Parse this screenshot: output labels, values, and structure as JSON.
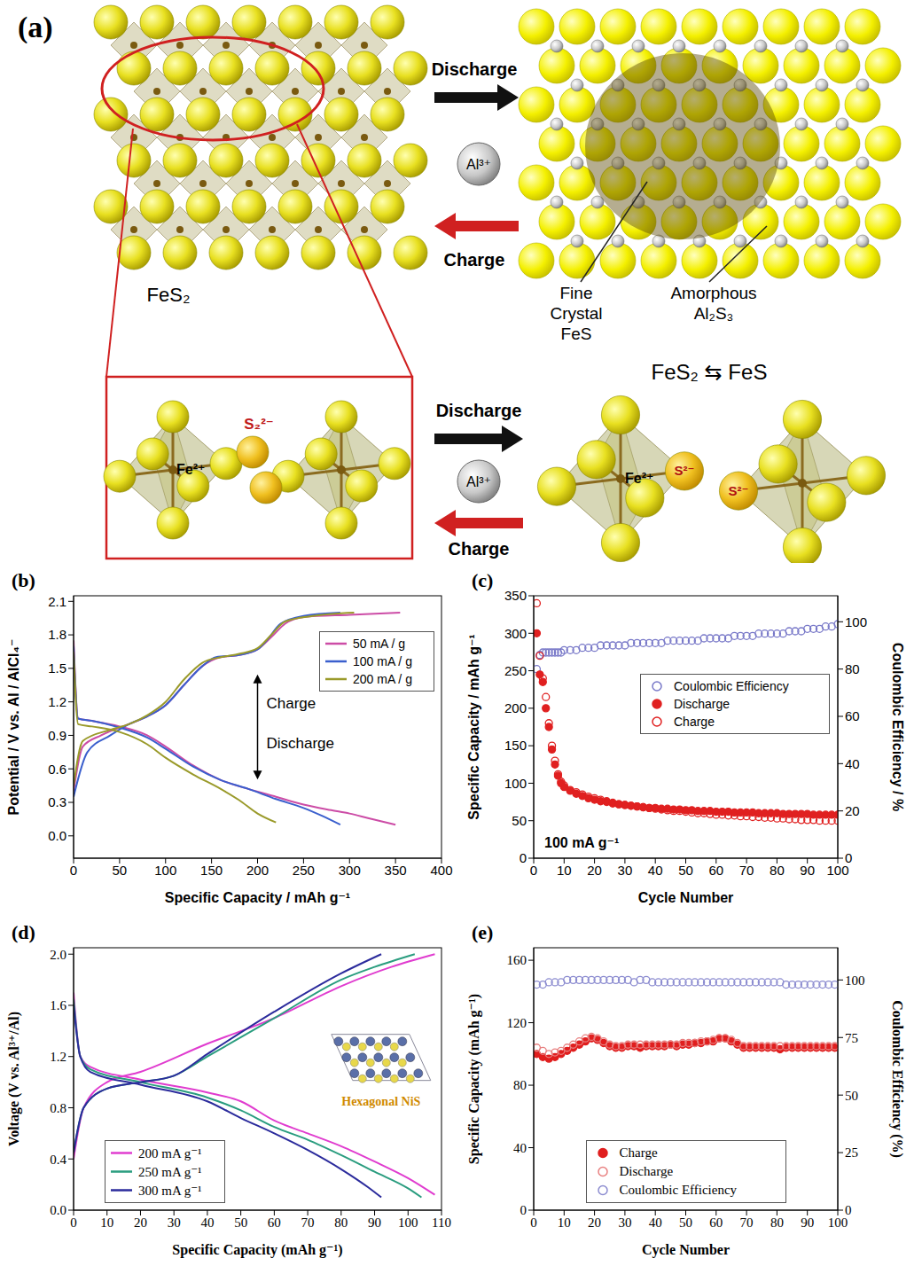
{
  "diagram": {
    "label": "(a)",
    "top": {
      "left_label": "FeS₂",
      "discharge": "Discharge",
      "charge": "Charge",
      "ion": "Al³⁺",
      "products": [
        "Fine Crystal FeS",
        "Amorphous Al₂S₃"
      ]
    },
    "bottom": {
      "discharge": "Discharge",
      "charge": "Charge",
      "ion": "Al³⁺",
      "reaction": "FeS₂ ⇆ FeS",
      "left_labels": [
        "Fe²⁺",
        "S₂²⁻"
      ],
      "right_labels": [
        "Fe²⁺",
        "S²⁻",
        "S²⁻"
      ]
    }
  },
  "chart_data": [
    {
      "panel": "(b)",
      "type": "line",
      "x_label": "Specific Capacity / mAh g⁻¹",
      "y_label": "Potential / V vs. Al / AlCl₄⁻",
      "xlim": [
        0,
        400
      ],
      "xticks": [
        0,
        50,
        100,
        150,
        200,
        250,
        300,
        350,
        400
      ],
      "ylim": [
        -0.2,
        2.15
      ],
      "yticks": [
        {
          "value": 0,
          "label": "0.0"
        },
        0.3,
        0.6,
        0.9,
        1.2,
        1.5,
        1.8,
        2.1
      ],
      "legend": "right",
      "annotations": [
        "Charge",
        "Discharge"
      ],
      "series": [
        {
          "name": "50 mA / g",
          "color": "#cc4ca6",
          "discharge": {
            "x": [
              0,
              5,
              20,
              50,
              80,
              100,
              130,
              160,
              190,
              220,
              250,
              280,
              300,
              320,
              350
            ],
            "values": [
              1.75,
              1.05,
              1.03,
              0.98,
              0.9,
              0.8,
              0.63,
              0.5,
              0.42,
              0.35,
              0.28,
              0.23,
              0.2,
              0.16,
              0.1
            ]
          },
          "charge": {
            "x": [
              0,
              10,
              30,
              60,
              80,
              100,
              120,
              140,
              160,
              180,
              200,
              215,
              230,
              250,
              300,
              355
            ],
            "values": [
              0.4,
              0.8,
              0.9,
              1.0,
              1.07,
              1.17,
              1.35,
              1.52,
              1.6,
              1.62,
              1.67,
              1.78,
              1.9,
              1.96,
              1.98,
              2.0
            ]
          }
        },
        {
          "name": "100 mA / g",
          "color": "#3a5fcd",
          "discharge": {
            "x": [
              0,
              5,
              20,
              50,
              80,
              100,
              130,
              160,
              190,
              220,
              250,
              270,
              290
            ],
            "values": [
              1.7,
              1.05,
              1.03,
              0.97,
              0.88,
              0.78,
              0.62,
              0.5,
              0.42,
              0.33,
              0.25,
              0.18,
              0.1
            ]
          },
          "charge": {
            "x": [
              0,
              15,
              40,
              60,
              80,
              100,
              120,
              140,
              155,
              180,
              200,
              210,
              225,
              250,
              290
            ],
            "values": [
              0.35,
              0.75,
              0.9,
              1.0,
              1.07,
              1.17,
              1.35,
              1.52,
              1.6,
              1.62,
              1.67,
              1.75,
              1.9,
              1.97,
              2.0
            ]
          }
        },
        {
          "name": "200 mA / g",
          "color": "#9a9a2a",
          "discharge": {
            "x": [
              0,
              5,
              20,
              50,
              80,
              100,
              130,
              160,
              180,
              200,
              220
            ],
            "values": [
              1.65,
              1.0,
              0.98,
              0.93,
              0.82,
              0.7,
              0.55,
              0.42,
              0.32,
              0.2,
              0.12
            ]
          },
          "charge": {
            "x": [
              0,
              10,
              40,
              60,
              80,
              100,
              120,
              140,
              160,
              180,
              200,
              215,
              230,
              260,
              305
            ],
            "values": [
              0.45,
              0.85,
              0.95,
              1.0,
              1.08,
              1.2,
              1.4,
              1.55,
              1.6,
              1.63,
              1.68,
              1.8,
              1.92,
              1.97,
              2.0
            ]
          }
        }
      ]
    },
    {
      "panel": "(c)",
      "type": "scatter",
      "x_label": "Cycle Number",
      "y_label": "Specific Capacity / mAh g⁻¹",
      "y2_label": "Coulombic Efficiency / %",
      "xlim": [
        0,
        100
      ],
      "xticks": [
        0,
        10,
        20,
        30,
        40,
        50,
        60,
        70,
        80,
        90,
        100
      ],
      "ylim": [
        0,
        350
      ],
      "yticks": [
        0,
        50,
        100,
        150,
        200,
        250,
        300,
        350
      ],
      "y2lim": [
        0,
        111
      ],
      "y2ticks": [
        0,
        20,
        40,
        60,
        80,
        100
      ],
      "legend": "center",
      "annotations": [
        "100 mA g⁻¹"
      ],
      "x": [
        1,
        2,
        3,
        4,
        5,
        6,
        7,
        8,
        9,
        10,
        12,
        14,
        16,
        18,
        20,
        22,
        24,
        26,
        28,
        30,
        32,
        34,
        36,
        38,
        40,
        42,
        44,
        46,
        48,
        50,
        52,
        54,
        56,
        58,
        60,
        62,
        64,
        66,
        68,
        70,
        72,
        74,
        76,
        78,
        80,
        82,
        84,
        86,
        88,
        90,
        92,
        94,
        96,
        98,
        100
      ],
      "series": [
        {
          "name": "Coulombic Efficiency",
          "color": "#7878c8",
          "marker": "open circle",
          "axis": "y2",
          "values": [
            80,
            86,
            87,
            87,
            87,
            87,
            87,
            87,
            87,
            88,
            88,
            88,
            89,
            89,
            89,
            90,
            90,
            90,
            90,
            90,
            91,
            91,
            91,
            91,
            91,
            91,
            92,
            92,
            92,
            92,
            92,
            92,
            93,
            93,
            93,
            93,
            93,
            94,
            94,
            94,
            94,
            95,
            95,
            95,
            95,
            95,
            96,
            96,
            96,
            97,
            97,
            97,
            98,
            98,
            99
          ]
        },
        {
          "name": "Discharge",
          "color": "#e02020",
          "marker": "filled circle",
          "values": [
            300,
            245,
            235,
            200,
            175,
            145,
            125,
            110,
            100,
            95,
            90,
            86,
            83,
            80,
            78,
            76,
            75,
            73,
            72,
            71,
            70,
            69,
            68,
            67,
            67,
            66,
            66,
            65,
            65,
            64,
            64,
            63,
            63,
            63,
            62,
            62,
            62,
            61,
            61,
            61,
            61,
            60,
            60,
            60,
            60,
            59,
            59,
            59,
            59,
            59,
            58,
            58,
            58,
            58,
            58
          ]
        },
        {
          "name": "Charge",
          "color": "#e02020",
          "marker": "open circle",
          "values": [
            340,
            270,
            240,
            215,
            180,
            150,
            130,
            112,
            102,
            97,
            91,
            88,
            85,
            82,
            80,
            78,
            76,
            74,
            72,
            71,
            70,
            69,
            68,
            67,
            66,
            65,
            64,
            63,
            63,
            62,
            61,
            60,
            60,
            59,
            58,
            58,
            57,
            57,
            56,
            56,
            55,
            55,
            54,
            54,
            53,
            53,
            52,
            52,
            51,
            51,
            51,
            50,
            50,
            50,
            50
          ]
        }
      ]
    },
    {
      "panel": "(d)",
      "type": "line",
      "x_label": "Specific Capacity (mAh g⁻¹)",
      "y_label": "Voltage (V vs. Al³⁺/Al)",
      "xlim": [
        0,
        110
      ],
      "xticks": [
        0,
        10,
        20,
        30,
        40,
        50,
        60,
        70,
        80,
        90,
        100,
        110
      ],
      "ylim": [
        0,
        2.05
      ],
      "yticks": [
        {
          "value": 0,
          "label": "0.0"
        },
        0.4,
        0.8,
        1.2,
        1.6,
        {
          "value": 2,
          "label": "2.0"
        }
      ],
      "legend": "lower left",
      "inset_label": "Hexagonal NiS",
      "series": [
        {
          "name": "200 mA g⁻¹",
          "color": "#e03ccf",
          "discharge": {
            "x": [
              0,
              2,
              5,
              20,
              40,
              50,
              60,
              70,
              80,
              90,
              100,
              108
            ],
            "values": [
              1.7,
              1.2,
              1.12,
              1.02,
              0.92,
              0.85,
              0.7,
              0.6,
              0.5,
              0.38,
              0.25,
              0.12
            ]
          },
          "charge": {
            "x": [
              0,
              3,
              10,
              20,
              40,
              60,
              80,
              95,
              108
            ],
            "values": [
              0.4,
              0.8,
              1.0,
              1.08,
              1.3,
              1.5,
              1.75,
              1.9,
              2.0
            ]
          }
        },
        {
          "name": "250 mA g⁻¹",
          "color": "#2a9d7f",
          "discharge": {
            "x": [
              0,
              2,
              5,
              20,
              40,
              50,
              60,
              70,
              80,
              90,
              100,
              104
            ],
            "values": [
              1.65,
              1.2,
              1.1,
              1.0,
              0.88,
              0.78,
              0.65,
              0.55,
              0.43,
              0.3,
              0.17,
              0.1
            ]
          },
          "charge": {
            "x": [
              0,
              3,
              10,
              20,
              30,
              40,
              60,
              80,
              90,
              102
            ],
            "values": [
              0.45,
              0.8,
              0.95,
              1.0,
              1.05,
              1.2,
              1.5,
              1.8,
              1.9,
              2.0
            ]
          }
        },
        {
          "name": "300 mA g⁻¹",
          "color": "#2b2b9c",
          "discharge": {
            "x": [
              0,
              2,
              5,
              20,
              40,
              50,
              60,
              70,
              80,
              88,
              92
            ],
            "values": [
              1.6,
              1.2,
              1.08,
              0.98,
              0.85,
              0.72,
              0.6,
              0.47,
              0.32,
              0.18,
              0.1
            ]
          },
          "charge": {
            "x": [
              0,
              3,
              10,
              20,
              30,
              40,
              60,
              80,
              92
            ],
            "values": [
              0.45,
              0.8,
              0.95,
              1.0,
              1.05,
              1.22,
              1.55,
              1.85,
              2.0
            ]
          }
        }
      ]
    },
    {
      "panel": "(e)",
      "type": "scatter",
      "x_label": "Cycle Number",
      "y_label": "Specific Capacity (mAh g⁻¹)",
      "y2_label": "Coulombic Efficiency (%)",
      "xlim": [
        0,
        100
      ],
      "xticks": [
        0,
        10,
        20,
        30,
        40,
        50,
        60,
        70,
        80,
        90,
        100
      ],
      "ylim": [
        0,
        168
      ],
      "yticks": [
        0,
        40,
        80,
        120,
        160
      ],
      "y2lim": [
        0,
        114
      ],
      "y2ticks": [
        0,
        25,
        50,
        75,
        100
      ],
      "legend": "lower center",
      "x": [
        1,
        3,
        5,
        7,
        9,
        11,
        13,
        15,
        17,
        19,
        21,
        23,
        25,
        27,
        29,
        31,
        33,
        35,
        37,
        39,
        41,
        43,
        45,
        47,
        49,
        51,
        53,
        55,
        57,
        59,
        61,
        63,
        65,
        67,
        69,
        71,
        73,
        75,
        77,
        79,
        81,
        83,
        85,
        87,
        89,
        91,
        93,
        95,
        97,
        99
      ],
      "series": [
        {
          "name": "Charge",
          "color": "#e01e1e",
          "marker": "filled circle",
          "values": [
            100,
            98,
            97,
            98,
            100,
            102,
            104,
            106,
            108,
            110,
            109,
            107,
            105,
            104,
            104,
            105,
            105,
            104,
            105,
            105,
            105,
            105,
            106,
            105,
            106,
            106,
            107,
            107,
            108,
            108,
            110,
            110,
            108,
            106,
            104,
            104,
            104,
            104,
            104,
            104,
            103,
            104,
            104,
            104,
            104,
            104,
            104,
            104,
            104,
            104
          ]
        },
        {
          "name": "Discharge",
          "color": "#e88080",
          "marker": "open circle",
          "values": [
            104,
            102,
            100,
            101,
            102,
            104,
            106,
            108,
            110,
            111,
            110,
            108,
            106,
            105,
            105,
            106,
            106,
            106,
            106,
            106,
            106,
            106,
            106,
            106,
            107,
            107,
            107,
            108,
            108,
            109,
            110,
            110,
            109,
            107,
            105,
            105,
            105,
            105,
            105,
            105,
            105,
            105,
            105,
            105,
            105,
            105,
            105,
            105,
            105,
            105
          ]
        },
        {
          "name": "Coulombic Efficiency",
          "color": "#8c8cd0",
          "marker": "open circle",
          "axis": "y2",
          "values": [
            98,
            98,
            99,
            99,
            99,
            100,
            100,
            100,
            100,
            100,
            100,
            100,
            100,
            100,
            100,
            100,
            99,
            100,
            100,
            99,
            99,
            99,
            99,
            99,
            99,
            99,
            99,
            99,
            99,
            99,
            99,
            99,
            99,
            99,
            99,
            99,
            99,
            99,
            99,
            99,
            99,
            98,
            98,
            98,
            98,
            98,
            98,
            98,
            98,
            98
          ]
        }
      ]
    }
  ]
}
